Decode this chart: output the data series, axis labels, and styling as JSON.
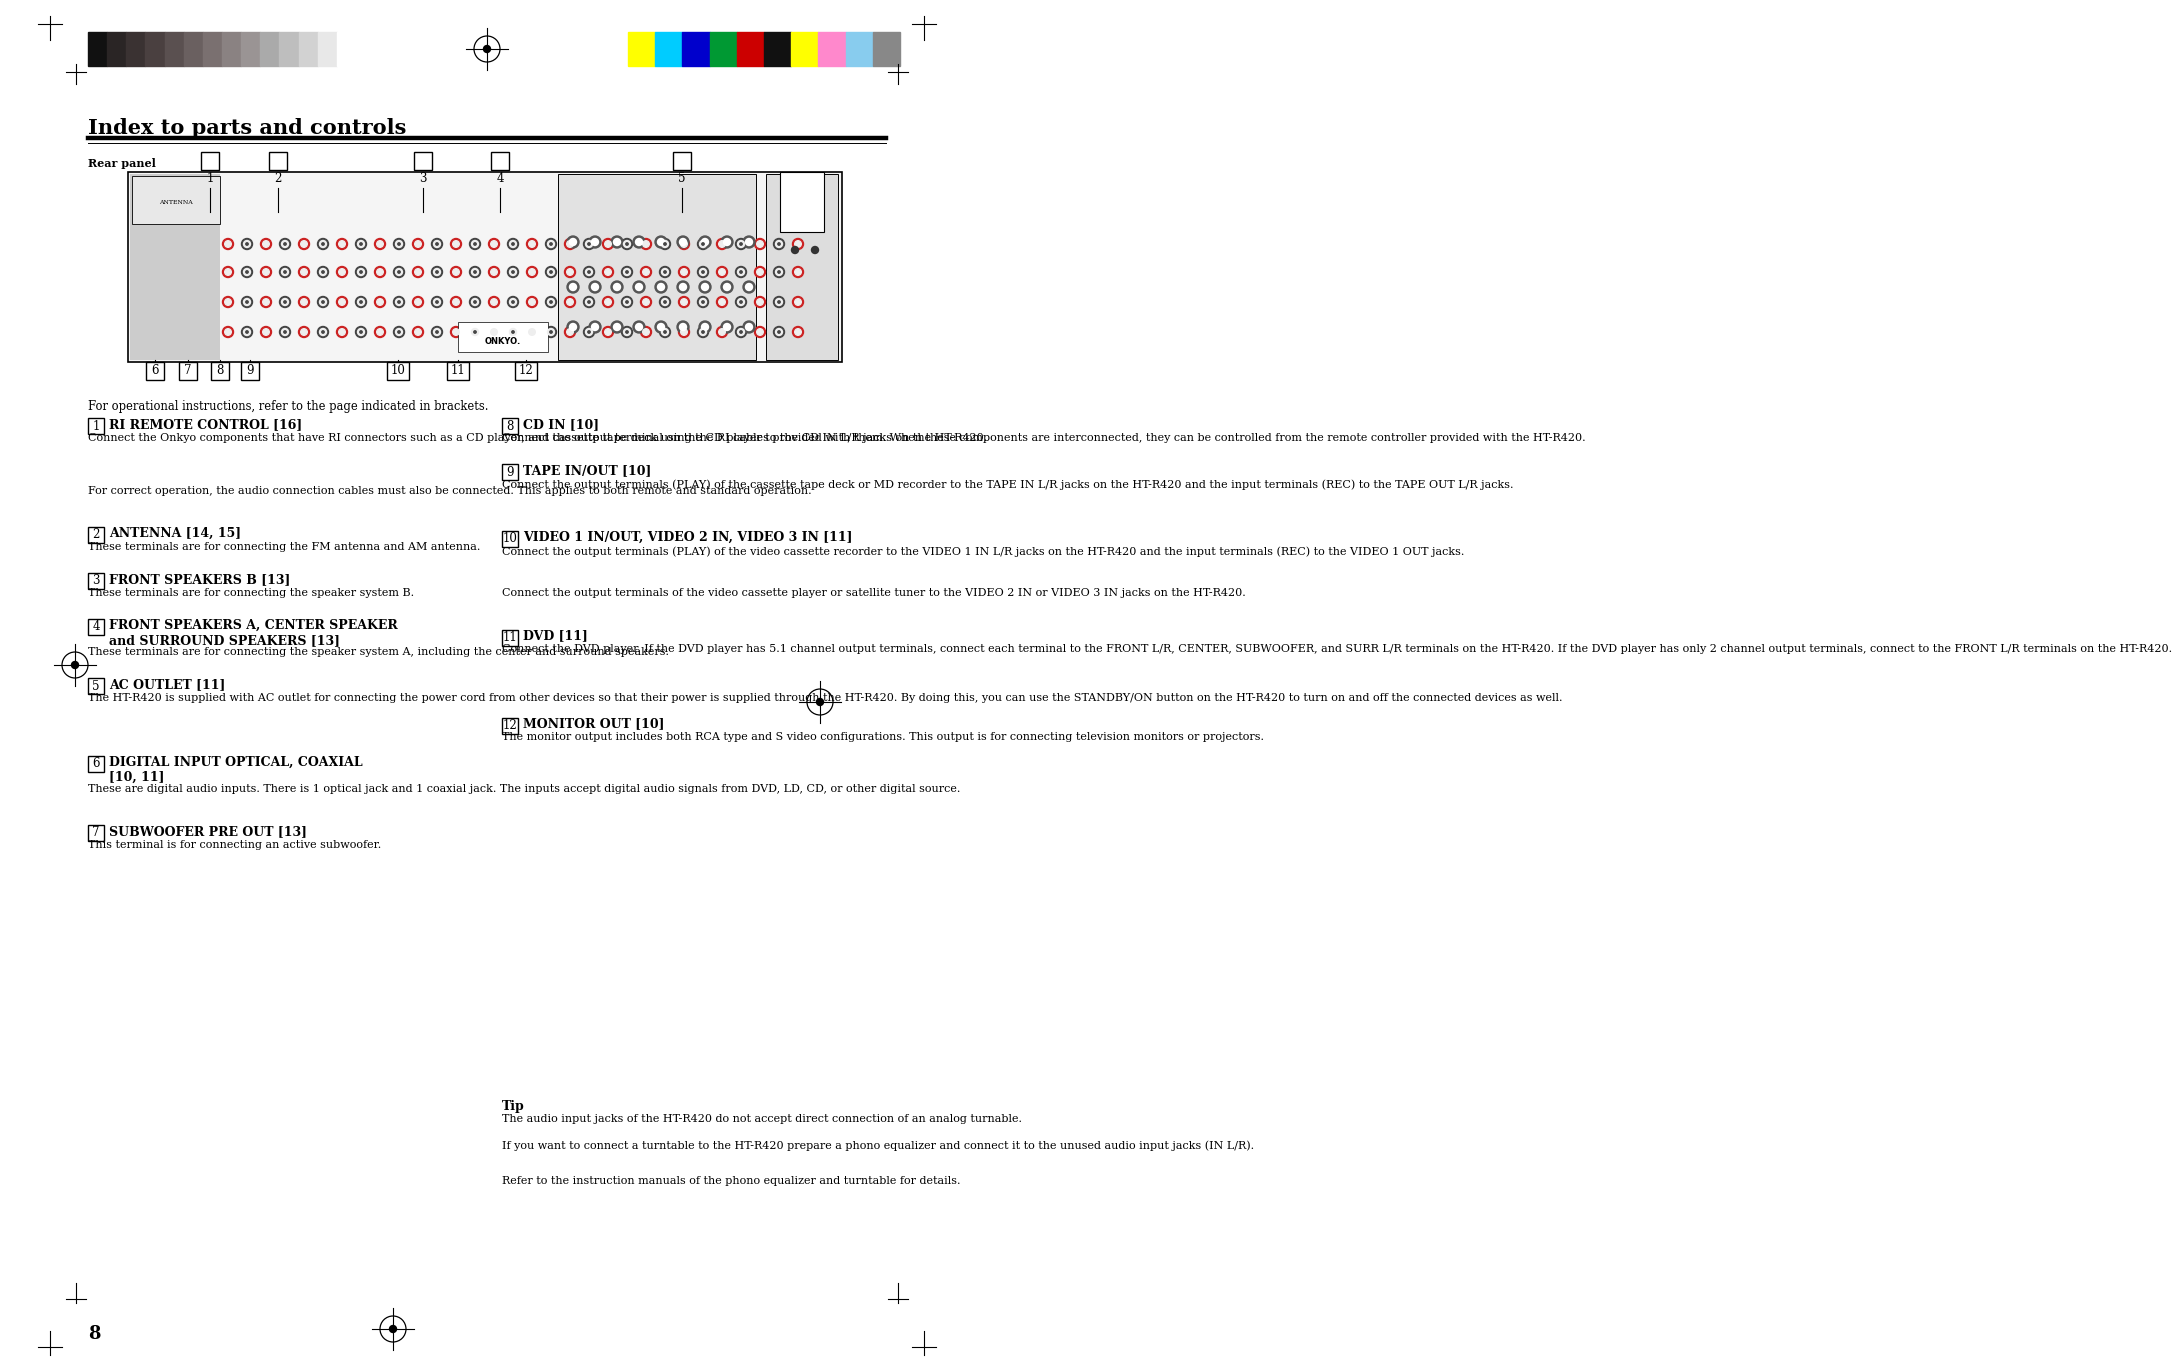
{
  "title": "Index to parts and controls",
  "page_number": "8",
  "rear_panel_label": "Rear panel",
  "bg_color": "#ffffff",
  "text_color": "#000000",
  "header_grayscale_colors": [
    "#111111",
    "#2a2525",
    "#3a3232",
    "#4a4040",
    "#5a5050",
    "#6a6060",
    "#7a7070",
    "#8a8282",
    "#9a9494",
    "#aaaaaa",
    "#bebebe",
    "#d2d2d2",
    "#e8e8e8",
    "#ffffff"
  ],
  "header_color_colors": [
    "#ffff00",
    "#00ccff",
    "#0000cc",
    "#009933",
    "#cc0000",
    "#111111",
    "#ffff00",
    "#ff88cc",
    "#88ccee",
    "#888888"
  ],
  "sections_left": [
    {
      "num": "1",
      "heading": "RI REMOTE CONTROL [16]",
      "body": "Connect the Onkyo components that have RI connectors such as a CD player, and cassette tape deck using the RI cables provided with them. When these components are interconnected, they can be controlled from the remote controller provided with the HT-R420.\n\nFor correct operation, the audio connection cables must also be connected. This applies to both remote and standard operation."
    },
    {
      "num": "2",
      "heading": "ANTENNA [14, 15]",
      "body": "These terminals are for connecting the FM antenna and AM antenna."
    },
    {
      "num": "3",
      "heading": "FRONT SPEAKERS B [13]",
      "body": "These terminals are for connecting the speaker system B."
    },
    {
      "num": "4",
      "heading": "FRONT SPEAKERS A, CENTER SPEAKER\nand SURROUND SPEAKERS [13]",
      "body": "These terminals are for connecting the speaker system A, including the center and surround speakers."
    },
    {
      "num": "5",
      "heading": "AC OUTLET [11]",
      "body": "The HT-R420 is supplied with AC outlet for connecting the power cord from other devices so that their power is supplied through the HT-R420. By doing this, you can use the STANDBY/ON button on the HT-R420 to turn on and off the connected devices as well."
    },
    {
      "num": "6",
      "heading": "DIGITAL INPUT OPTICAL, COAXIAL\n[10, 11]",
      "body": "These are digital audio inputs. There is 1 optical jack and 1 coaxial jack. The inputs accept digital audio signals from DVD, LD, CD, or other digital source."
    },
    {
      "num": "7",
      "heading": "SUBWOOFER PRE OUT [13]",
      "body": "This terminal is for connecting an active subwoofer."
    }
  ],
  "sections_right": [
    {
      "num": "8",
      "heading": "CD IN [10]",
      "body": "Connect the output terminal on the CD player to the CD IN L/R jacks on the HT-R420."
    },
    {
      "num": "9",
      "heading": "TAPE IN/OUT [10]",
      "body": "Connect the output terminals (PLAY) of the cassette tape deck or MD recorder to the TAPE IN L/R jacks on the HT-R420 and the input terminals (REC) to the TAPE OUT L/R jacks."
    },
    {
      "num": "10",
      "heading": "VIDEO 1 IN/OUT, VIDEO 2 IN, VIDEO 3 IN [11]",
      "body": "Connect the output terminals (PLAY) of the video cassette recorder to the VIDEO 1 IN L/R jacks on the HT-R420 and the input terminals (REC) to the VIDEO 1 OUT jacks.\n\nConnect the output terminals of the video cassette player or satellite tuner to the VIDEO 2 IN or VIDEO 3 IN jacks on the HT-R420."
    },
    {
      "num": "11",
      "heading": "DVD [11]",
      "body": "Connect the DVD player. If the DVD player has 5.1 channel output terminals, connect each terminal to the FRONT L/R, CENTER, SUBWOOFER, and SURR L/R terminals on the HT-R420. If the DVD player has only 2 channel output terminals, connect to the FRONT L/R terminals on the HT-R420."
    },
    {
      "num": "12",
      "heading": "MONITOR OUT [10]",
      "body": "The monitor output includes both RCA type and S video configurations. This output is for connecting television monitors or projectors."
    }
  ],
  "tip_title": "Tip",
  "tip_body": "The audio input jacks of the HT-R420 do not accept direct connection of an analog turnable.\n\nIf you want to connect a turntable to the HT-R420 prepare a phono equalizer and connect it to the unused audio input jacks (IN L/R).\n\nRefer to the instruction manuals of the phono equalizer and turntable for details.",
  "for_operational": "For operational instructions, refer to the page indicated in brackets."
}
